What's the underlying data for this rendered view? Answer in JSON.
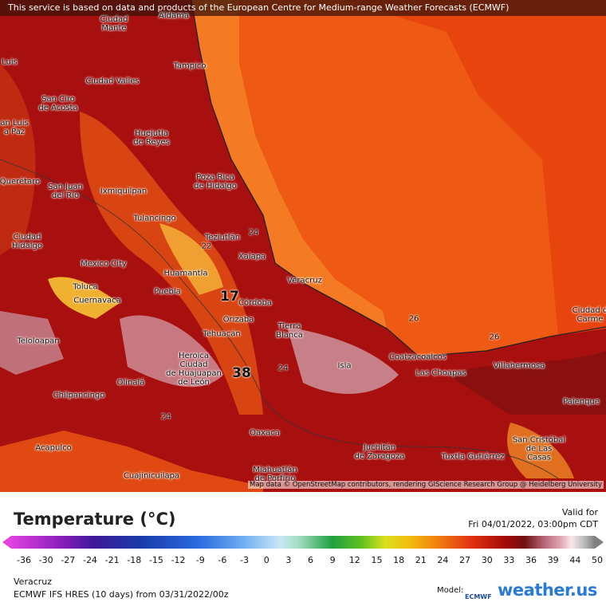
{
  "header": {
    "notice": "This service is based on data and products of the European Centre for Medium-range Weather Forecasts (ECMWF)"
  },
  "map": {
    "cities": [
      "Aldama",
      "Ciudad\nMante",
      "Tampico",
      "Luis",
      "Ciudad Valles",
      "San Ciro\nde Acosta",
      "an Luis\na Paz",
      "Huejutla\nde Reyes",
      "Querétaro",
      "San Juan\ndel Río",
      "Ixmiquilpan",
      "Poza Rica\nde Hidalgo",
      "Tulancingo",
      "Ciudad\nHidalgo",
      "Teziutlán",
      "Xalapa",
      "Mexico City",
      "Huamantla",
      "Veracruz",
      "Toluca",
      "Puebla",
      "Cuernavaca",
      "Córdoba",
      "Orizaba",
      "Tierra\nBlanca",
      "Ciudad d\nCarme",
      "Tehuacán",
      "Teloloapan",
      "Heroica\nCiudad\nde Huajuapan\nde León",
      "Coatzacoalcos",
      "Isla",
      "Las Choapas",
      "Villahermosa",
      "Olinalá",
      "Palenque",
      "Chilpancingo",
      "Oaxaca",
      "San Cristóbal\nde Las\nCasas",
      "Acapulco",
      "Tuxtla Gutiérrez",
      "Juchitán\nde Zaragoza",
      "Miahuatlán\nde Porfirio",
      "Cuajinicuilapa"
    ],
    "contour_labels": [
      "24",
      "22",
      "17",
      "38",
      "26",
      "26",
      "24",
      "24"
    ],
    "attribution": "Map data © OpenStreetMap contributors, rendering GIScience Research Group @ Heidelberg University"
  },
  "legend": {
    "title": "Temperature (°C)",
    "valid_label": "Valid for",
    "valid_time": "Fri 04/01/2022, 03:00pm CDT",
    "ticks": [
      -36,
      -30,
      -27,
      -24,
      -21,
      -18,
      -15,
      -12,
      -9,
      -6,
      -3,
      0,
      3,
      6,
      9,
      12,
      15,
      18,
      21,
      24,
      27,
      30,
      33,
      36,
      39,
      44,
      50
    ]
  },
  "footer": {
    "location": "Veracruz",
    "model_run": "ECMWF IFS HRES (10 days) from 03/31/2022/00z",
    "model_label": "Model:",
    "model_logo": "ECMWF",
    "brand": "weather.us"
  }
}
